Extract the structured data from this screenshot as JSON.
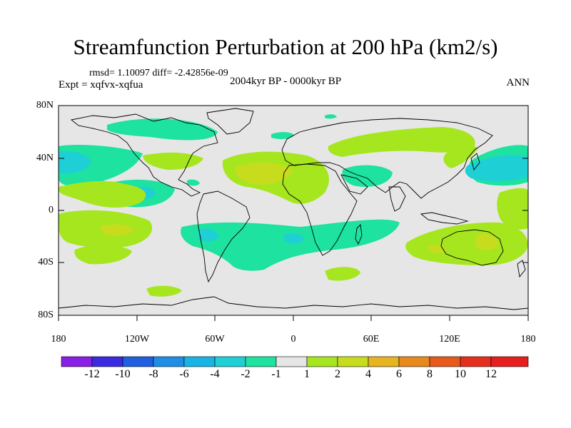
{
  "title": "Streamfunction Perturbation at 200 hPa (km2/s)",
  "stats": "rmsd= 1.10097 diff= -2.42856e-09",
  "experiment": "Expt = xqfvx-xqfua",
  "period": "2004kyr BP - 0000kyr BP",
  "season": "ANN",
  "lat_ticks": [
    "80N",
    "40N",
    "0",
    "40S",
    "80S"
  ],
  "lon_ticks": [
    "180",
    "120W",
    "60W",
    "0",
    "60E",
    "120E",
    "180"
  ],
  "colorbar": {
    "labels": [
      "-12",
      "-10",
      "-8",
      "-6",
      "-4",
      "-2",
      "-1",
      "1",
      "2",
      "4",
      "6",
      "8",
      "10",
      "12"
    ],
    "colors": [
      "#8a1fe6",
      "#3b2be0",
      "#1f5fe0",
      "#1f8fe6",
      "#19b4e6",
      "#1ecfd6",
      "#1ee2a0",
      "#e6e6e6",
      "#a6e61e",
      "#c8dc1e",
      "#e6b41e",
      "#e68a1e",
      "#e65a1e",
      "#e62d1e"
    ]
  },
  "palette": {
    "neutral": "#e6e6e6",
    "pos1": "#a6e61e",
    "pos2": "#c8dc1e",
    "neg1": "#1ee2a0",
    "neg2": "#1ecfd6",
    "neg3": "#19b4e6"
  }
}
